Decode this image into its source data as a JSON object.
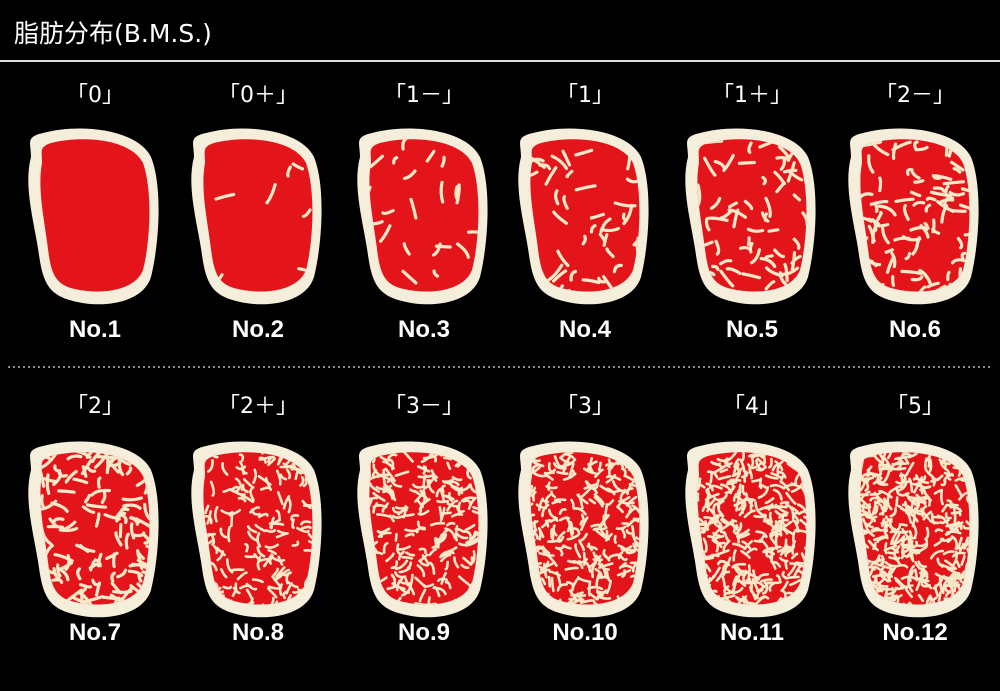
{
  "header": {
    "title": "脂肪分布(B.M.S.)"
  },
  "items": [
    {
      "grade": "「0」",
      "number": "No.1"
    },
    {
      "grade": "「0＋」",
      "number": "No.2"
    },
    {
      "grade": "「1－」",
      "number": "No.3"
    },
    {
      "grade": "「1」",
      "number": "No.4"
    },
    {
      "grade": "「1＋」",
      "number": "No.5"
    },
    {
      "grade": "「2－」",
      "number": "No.6"
    },
    {
      "grade": "「2」",
      "number": "No.7"
    },
    {
      "grade": "「2＋」",
      "number": "No.8"
    },
    {
      "grade": "「3－」",
      "number": "No.9"
    },
    {
      "grade": "「3」",
      "number": "No.10"
    },
    {
      "grade": "「4」",
      "number": "No.11"
    },
    {
      "grade": "「5」",
      "number": "No.12"
    }
  ]
}
